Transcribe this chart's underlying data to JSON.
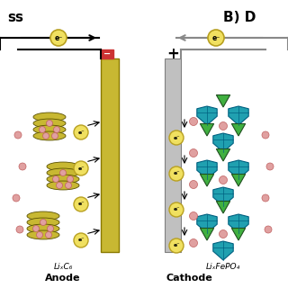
{
  "bg_color": "#ffffff",
  "title_left": "ss",
  "title_right": "B) D",
  "anode_label": "Anode",
  "cathode_label": "Cathode",
  "anode_material": "LiₓC₆",
  "cathode_material": "LiₓFePO₄",
  "minus_color": "#cc0000",
  "plus_color": "#000000",
  "electrode_color": "#c8b832",
  "separator_color": "#c0c0c0",
  "electron_circle_color": "#f0e060",
  "electron_text_color": "#000000",
  "arrow_color": "#000000",
  "gray_arrow_color": "#808080",
  "graphite_color": "#c8b832",
  "lfp_teal": "#20a0b0",
  "lfp_green": "#40b040",
  "li_ion_color": "#e0a0a0",
  "electrolyte_line_color": "#a0b8d0"
}
